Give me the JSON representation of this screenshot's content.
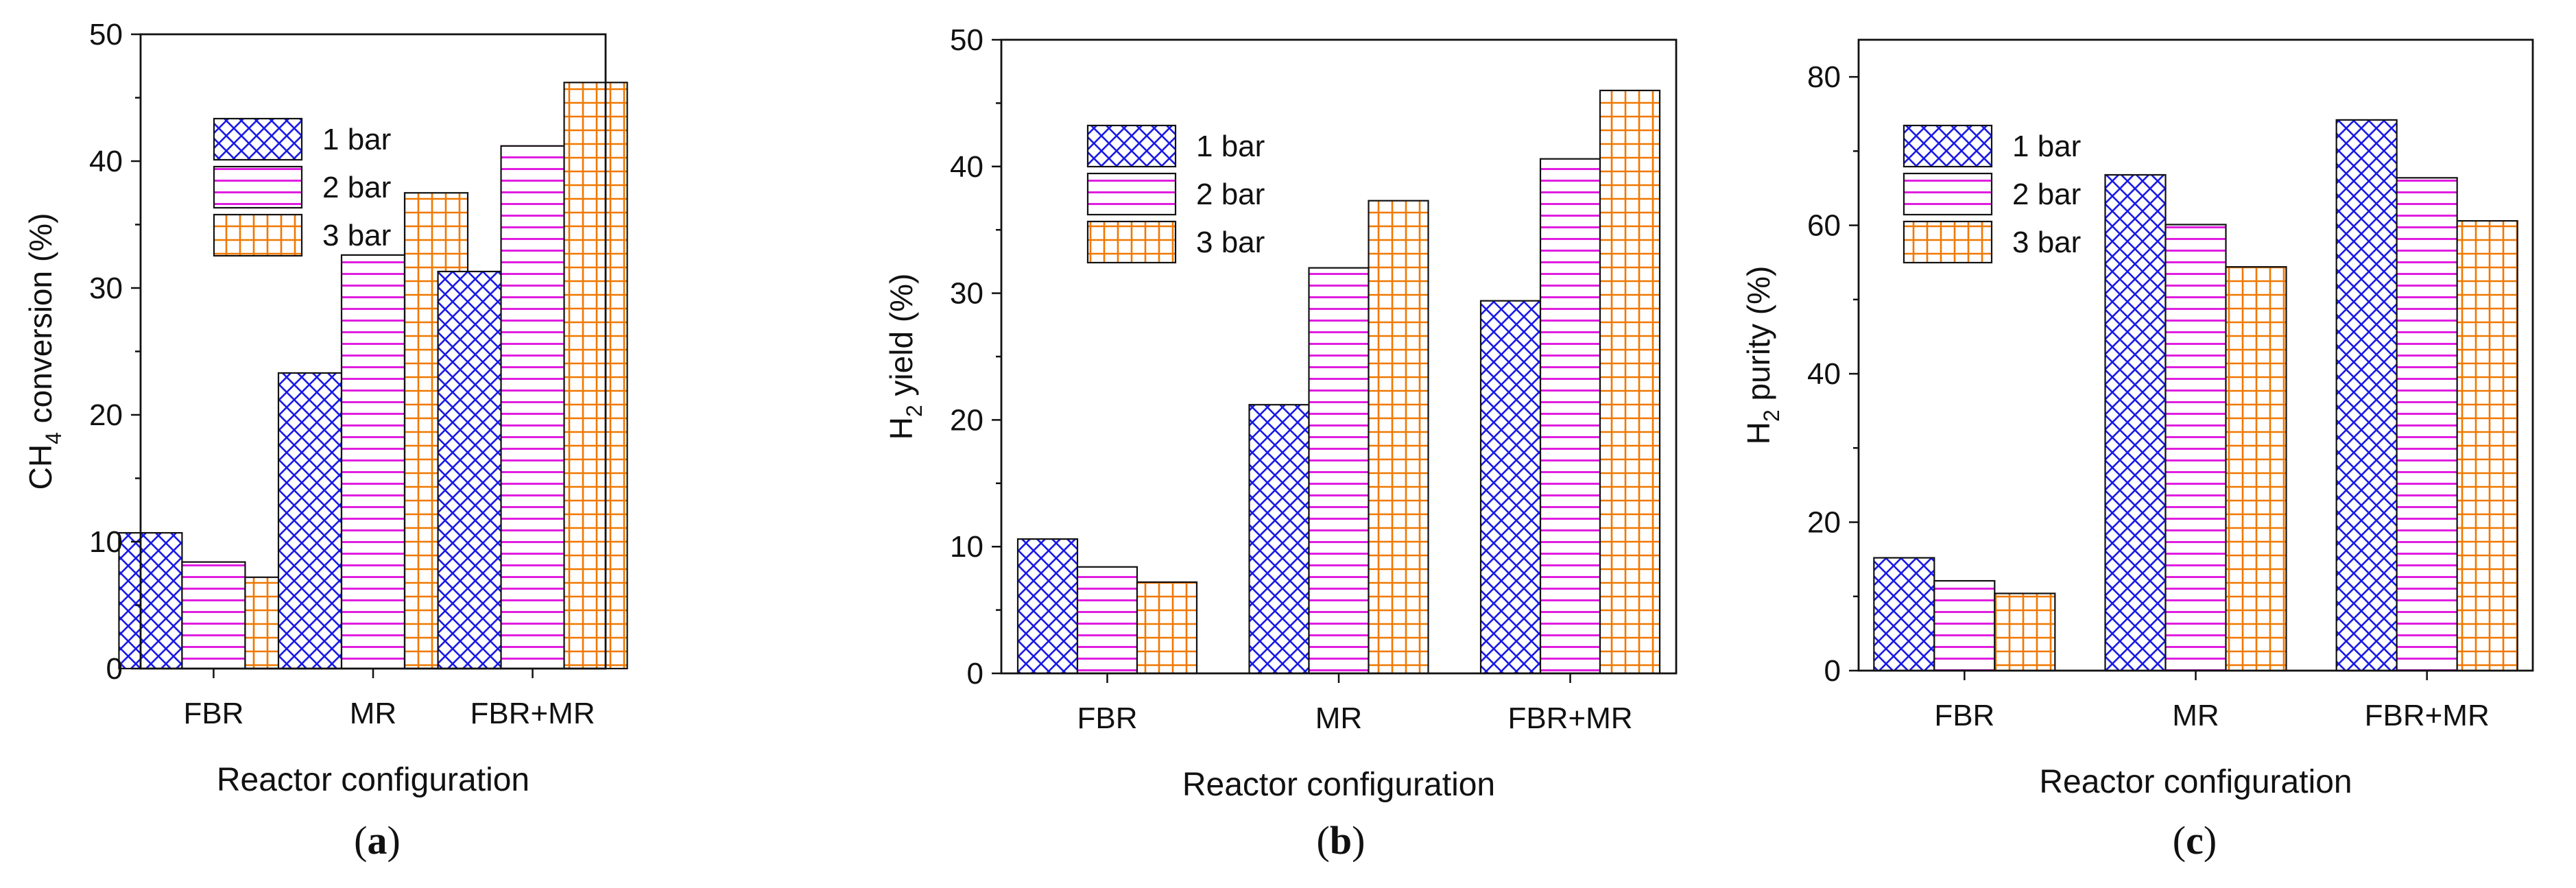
{
  "colors": {
    "bar_1": "#1a1ae6",
    "bar_2": "#e01ee0",
    "bar_3": "#f07800",
    "axis": "#111111"
  },
  "chart_data": [
    {
      "type": "bar",
      "panel": "(a)",
      "title": "",
      "xlabel": "Reactor configuration",
      "ylabel_main": "CH",
      "ylabel_sub": "4",
      "ylabel_rest": " conversion (%)",
      "ylim": [
        0,
        50
      ],
      "yticks": [
        0,
        10,
        20,
        30,
        40,
        50
      ],
      "grid": false,
      "legend_position": "top-left",
      "categories": [
        "FBR",
        "MR",
        "FBR+MR"
      ],
      "series": [
        {
          "name": "1 bar",
          "pattern": "crosshatch",
          "values": [
            10.7,
            23.3,
            31.3
          ]
        },
        {
          "name": "2 bar",
          "pattern": "horizontal",
          "values": [
            8.4,
            32.6,
            41.2
          ]
        },
        {
          "name": "3 bar",
          "pattern": "grid",
          "values": [
            7.2,
            37.5,
            46.2
          ]
        }
      ]
    },
    {
      "type": "bar",
      "panel": "(b)",
      "title": "",
      "xlabel": "Reactor configuration",
      "ylabel_main": "H",
      "ylabel_sub": "2",
      "ylabel_rest": " yield (%)",
      "ylim": [
        0,
        50
      ],
      "yticks": [
        0,
        10,
        20,
        30,
        40,
        50
      ],
      "grid": false,
      "legend_position": "top-left",
      "categories": [
        "FBR",
        "MR",
        "FBR+MR"
      ],
      "series": [
        {
          "name": "1 bar",
          "pattern": "crosshatch",
          "values": [
            10.6,
            21.2,
            29.4
          ]
        },
        {
          "name": "2 bar",
          "pattern": "horizontal",
          "values": [
            8.4,
            32.0,
            40.6
          ]
        },
        {
          "name": "3 bar",
          "pattern": "grid",
          "values": [
            7.2,
            37.3,
            46.0
          ]
        }
      ]
    },
    {
      "type": "bar",
      "panel": "(c)",
      "title": "",
      "xlabel": "Reactor configuration",
      "ylabel_main": "H",
      "ylabel_sub": "2",
      "ylabel_rest": " purity (%)",
      "ylim": [
        0,
        85
      ],
      "yticks": [
        0,
        20,
        40,
        60,
        80
      ],
      "grid": false,
      "legend_position": "top-left",
      "categories": [
        "FBR",
        "MR",
        "FBR+MR"
      ],
      "series": [
        {
          "name": "1 bar",
          "pattern": "crosshatch",
          "values": [
            15.2,
            66.8,
            74.2
          ]
        },
        {
          "name": "2 bar",
          "pattern": "horizontal",
          "values": [
            12.1,
            60.1,
            66.4
          ]
        },
        {
          "name": "3 bar",
          "pattern": "grid",
          "values": [
            10.4,
            54.4,
            60.6
          ]
        }
      ]
    }
  ]
}
